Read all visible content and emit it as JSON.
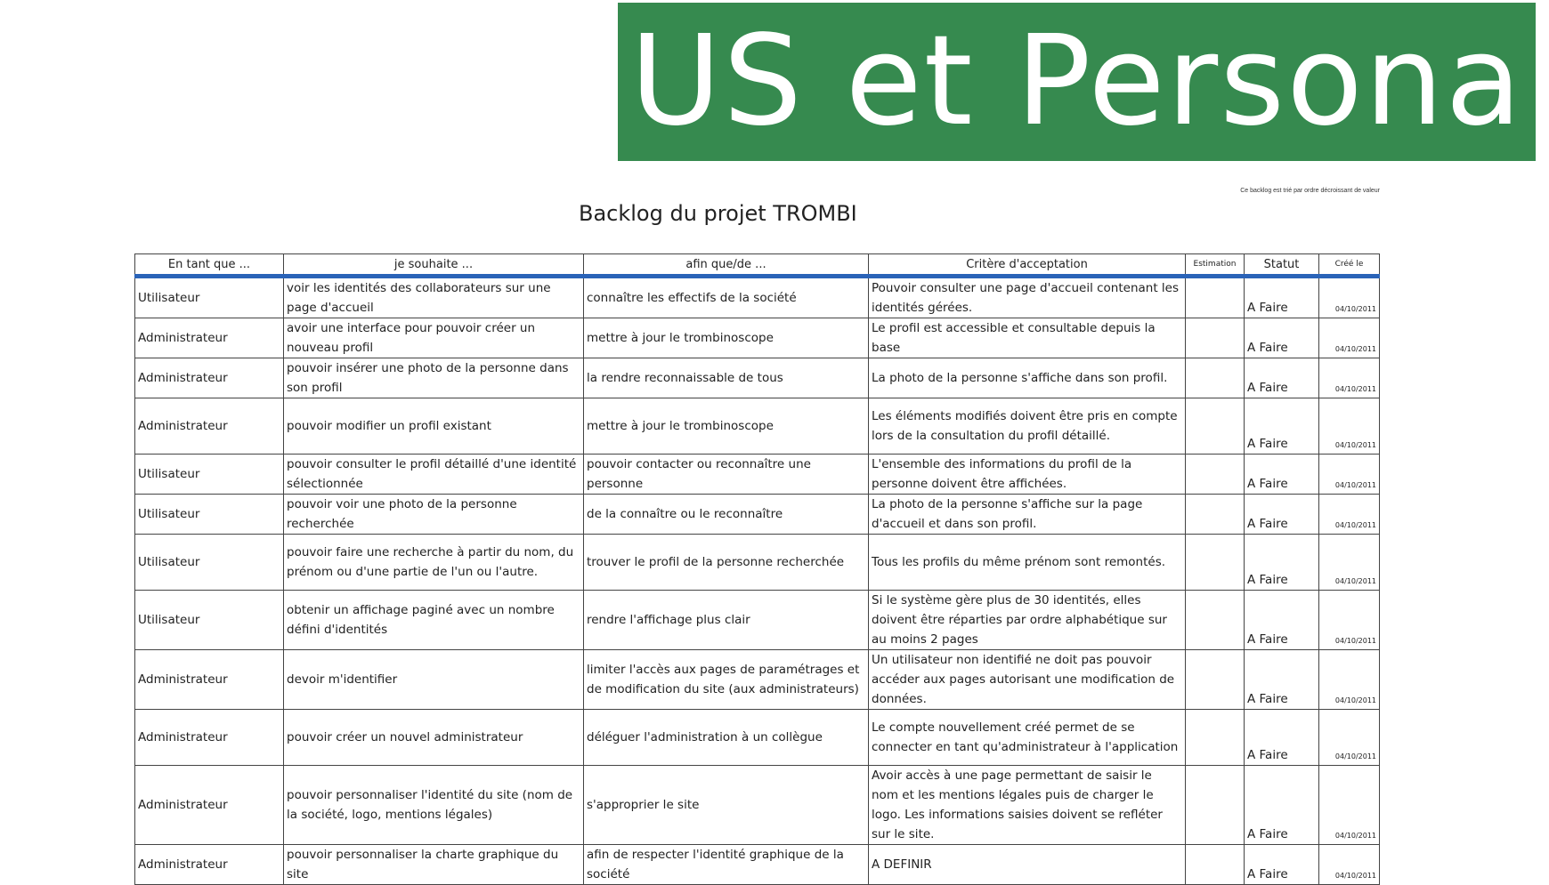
{
  "banner": {
    "title": "US et Persona"
  },
  "note": "Ce backlog est trié par ordre décroissant de valeur",
  "document": {
    "title": "Backlog du projet TROMBI"
  },
  "table": {
    "headers": [
      "En tant que ...",
      "je souhaite ...",
      "afin que/de ...",
      "Critère d'acceptation",
      "Estimation",
      "Statut",
      "Créé le"
    ],
    "rows": [
      {
        "role": "Utilisateur",
        "wish": "voir les identités des collaborateurs sur une page d'accueil",
        "goal": "connaître les effectifs de la société",
        "criteria": "Pouvoir consulter une page d'accueil contenant les identités gérées.",
        "estimation": "",
        "status": "A Faire",
        "date": "04/10/2011"
      },
      {
        "role": "Administrateur",
        "wish": "avoir une interface pour pouvoir créer un nouveau profil",
        "goal": "mettre à jour le trombinoscope",
        "criteria": "Le profil est accessible et consultable depuis la base",
        "estimation": "",
        "status": "A Faire",
        "date": "04/10/2011"
      },
      {
        "role": "Administrateur",
        "wish": "pouvoir insérer une photo de la personne dans son profil",
        "goal": "la rendre reconnaissable de tous",
        "criteria": "La photo de la personne s'affiche dans son profil.",
        "estimation": "",
        "status": "A Faire",
        "date": "04/10/2011"
      },
      {
        "role": "Administrateur",
        "wish": "pouvoir modifier un profil existant",
        "goal": "mettre à jour le trombinoscope",
        "criteria": "Les éléments modifiés doivent être pris en compte lors de la consultation du profil détaillé.",
        "estimation": "",
        "status": "A Faire",
        "date": "04/10/2011"
      },
      {
        "role": "Utilisateur",
        "wish": "pouvoir consulter le profil détaillé d'une identité sélectionnée",
        "goal": "pouvoir contacter ou reconnaître une personne",
        "criteria": "L'ensemble des informations du profil de la personne doivent être affichées.",
        "estimation": "",
        "status": "A Faire",
        "date": "04/10/2011"
      },
      {
        "role": "Utilisateur",
        "wish": "pouvoir voir une photo de la personne recherchée",
        "goal": "de la connaître ou le reconnaître",
        "criteria": "La photo de la personne s'affiche sur la page d'accueil et dans son profil.",
        "estimation": "",
        "status": "A Faire",
        "date": "04/10/2011"
      },
      {
        "role": "Utilisateur",
        "wish": "pouvoir faire une recherche à partir du nom, du prénom ou d'une partie de l'un ou l'autre.",
        "goal": "trouver le profil de la personne recherchée",
        "criteria": "Tous les profils du même prénom sont remontés.",
        "estimation": "",
        "status": "A Faire",
        "date": "04/10/2011"
      },
      {
        "role": "Utilisateur",
        "wish": "obtenir un affichage paginé avec un nombre défini d'identités",
        "goal": "rendre l'affichage plus clair",
        "criteria": "Si le système gère plus de 30 identités, elles doivent être réparties par ordre alphabétique sur au moins 2 pages",
        "estimation": "",
        "status": "A Faire",
        "date": "04/10/2011"
      },
      {
        "role": "Administrateur",
        "wish": "devoir m'identifier",
        "goal": "limiter l'accès aux pages de paramétrages et de modification du site (aux administrateurs)",
        "criteria": "Un utilisateur non identifié ne doit pas pouvoir accéder aux pages autorisant une modification de données.",
        "estimation": "",
        "status": "A Faire",
        "date": "04/10/2011"
      },
      {
        "role": "Administrateur",
        "wish": "pouvoir créer un nouvel administrateur",
        "goal": "déléguer l'administration à un collègue",
        "criteria": "Le compte nouvellement créé permet de se connecter en tant qu'administrateur à l'application",
        "estimation": "",
        "status": "A Faire",
        "date": "04/10/2011"
      },
      {
        "role": "Administrateur",
        "wish": "pouvoir personnaliser l'identité du site (nom de la société, logo, mentions légales)",
        "goal": "s'approprier le site",
        "criteria": "Avoir accès à une page permettant de saisir le nom et les mentions légales puis de charger le logo. Les informations saisies doivent se refléter sur le site.",
        "estimation": "",
        "status": "A Faire",
        "date": "04/10/2011"
      },
      {
        "role": "Administrateur",
        "wish": "pouvoir personnaliser la charte graphique du site",
        "goal": "afin de respecter l'identité graphique de la société",
        "criteria": "A DEFINIR",
        "estimation": "",
        "status": "A Faire",
        "date": "04/10/2011"
      }
    ]
  }
}
